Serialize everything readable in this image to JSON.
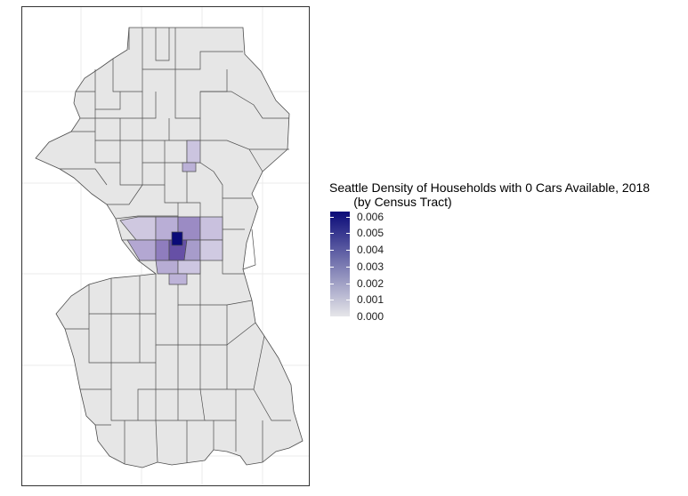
{
  "legend": {
    "title_line1": "Seattle Density of Households with 0 Cars Available, 2018",
    "title_line2": "(by Census Tract)",
    "labels": [
      "0.006",
      "0.005",
      "0.004",
      "0.003",
      "0.002",
      "0.001",
      "0.000"
    ],
    "values": [
      0.006,
      0.005,
      0.004,
      0.003,
      0.002,
      0.001,
      0.0
    ],
    "range": [
      0,
      0.0063
    ],
    "color_low": "#e6e6e9",
    "color_high": "#0a0a78"
  },
  "colors": {
    "tract_fill_default": "#e6e6e6",
    "tract_stroke": "#4d4d4d",
    "grid": "#ebebeb",
    "panel_border": "#333333"
  }
}
